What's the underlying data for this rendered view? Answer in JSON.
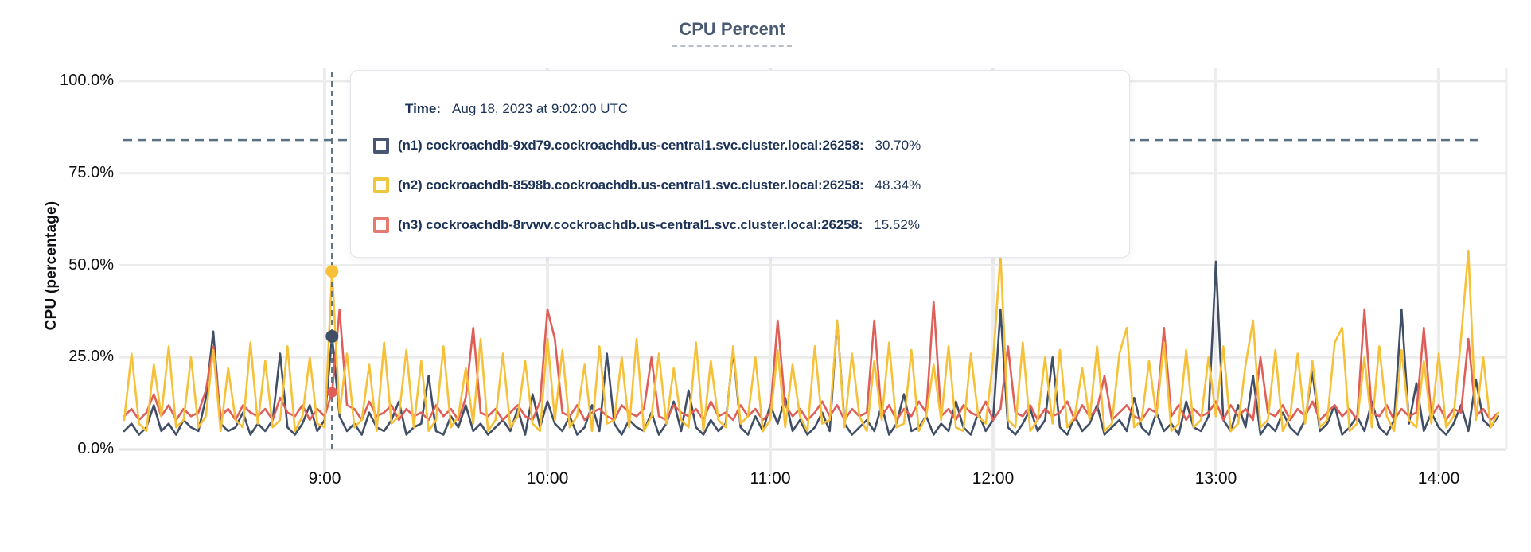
{
  "header": {
    "title": "CPU Percent"
  },
  "y_axis": {
    "label": "CPU (percentage)",
    "ticks": [
      "0.0%",
      "25.0%",
      "50.0%",
      "75.0%",
      "100.0%"
    ],
    "tick_values": [
      0,
      25,
      50,
      75,
      100
    ]
  },
  "x_axis": {
    "ticks": [
      "9:00",
      "10:00",
      "11:00",
      "12:00",
      "13:00",
      "14:00"
    ],
    "tick_minutes": [
      540,
      600,
      660,
      720,
      780,
      840
    ]
  },
  "tooltip": {
    "time_label": "Time:",
    "time_value": "Aug 18, 2023 at 9:02:00 UTC",
    "rows": [
      {
        "name": "(n1) cockroachdb-9xd79.cockroachdb.us-central1.svc.cluster.local:26258:",
        "value": "30.70%",
        "swatch_color": "#475672"
      },
      {
        "name": "(n2) cockroachdb-8598b.cockroachdb.us-central1.svc.cluster.local:26258:",
        "value": "48.34%",
        "swatch_color": "#efc73c"
      },
      {
        "name": "(n3) cockroachdb-8rvwv.cockroachdb.us-central1.svc.cluster.local:26258:",
        "value": "15.52%",
        "swatch_color": "#e57a70"
      }
    ]
  },
  "colors": {
    "grid": "#ececec",
    "axis_base": "#e2e2e2",
    "dashed_guides": "#5b7282",
    "title": "#4a5a73",
    "tooltip_text": "#1c3256"
  },
  "chart_data": {
    "type": "line",
    "title": "CPU Percent",
    "xlabel": "",
    "ylabel": "CPU (percentage)",
    "ylim": [
      0,
      100
    ],
    "grid": true,
    "x_start_minutes": 486,
    "x_step_minutes": 2,
    "threshold_percent": 84,
    "hover": {
      "minute": 542,
      "time_label": "Aug 18, 2023 at 9:02:00 UTC",
      "values": {
        "n1": 30.7,
        "n2": 48.34,
        "n3": 15.52
      }
    },
    "series": [
      {
        "name": "n1",
        "label": "(n1) cockroachdb-9xd79.cockroachdb.us-central1.svc.cluster.local:26258",
        "color": "#404e66",
        "dot_radius": 8,
        "values": [
          5,
          7,
          4,
          6,
          12,
          5,
          7,
          4,
          8,
          6,
          5,
          14,
          32,
          7,
          5,
          6,
          10,
          4,
          7,
          5,
          8,
          26,
          6,
          4,
          7,
          12,
          5,
          8,
          30.7,
          9,
          5,
          7,
          4,
          10,
          6,
          5,
          8,
          13,
          4,
          6,
          7,
          20,
          5,
          4,
          9,
          6,
          12,
          5,
          7,
          4,
          6,
          8,
          5,
          11,
          4,
          15,
          6,
          13,
          7,
          5,
          9,
          4,
          6,
          12,
          5,
          26,
          7,
          4,
          8,
          6,
          5,
          10,
          4,
          7,
          13,
          5,
          16,
          6,
          4,
          8,
          5,
          7,
          27,
          6,
          4,
          9,
          5,
          12,
          7,
          14,
          5,
          8,
          4,
          6,
          10,
          5,
          35,
          7,
          4,
          6,
          8,
          5,
          12,
          4,
          7,
          15,
          5,
          6,
          9,
          4,
          7,
          5,
          13,
          6,
          4,
          10,
          5,
          8,
          38,
          6,
          4,
          7,
          11,
          5,
          8,
          25,
          6,
          4,
          9,
          5,
          7,
          12,
          4,
          6,
          8,
          5,
          14,
          6,
          4,
          10,
          5,
          7,
          4,
          13,
          6,
          5,
          9,
          51,
          8,
          5,
          12,
          6,
          20,
          4,
          7,
          5,
          10,
          6,
          4,
          8,
          21,
          5,
          7,
          12,
          4,
          6,
          9,
          5,
          13,
          6,
          4,
          8,
          38,
          7,
          18,
          5,
          10,
          6,
          4,
          7,
          12,
          5,
          19,
          8,
          6,
          9
        ]
      },
      {
        "name": "n3",
        "label": "(n3) cockroachdb-8rvwv.cockroachdb.us-central1.svc.cluster.local:26258",
        "color": "#df5f58",
        "dot_radius": 6.5,
        "values": [
          9,
          11,
          8,
          10,
          15,
          9,
          12,
          8,
          11,
          9,
          10,
          16,
          28,
          9,
          11,
          8,
          12,
          10,
          9,
          11,
          8,
          14,
          10,
          9,
          12,
          8,
          11,
          9,
          15.52,
          38,
          12,
          11,
          8,
          13,
          9,
          10,
          12,
          8,
          11,
          9,
          10,
          8,
          12,
          9,
          11,
          8,
          14,
          33,
          10,
          9,
          11,
          8,
          10,
          12,
          9,
          8,
          13,
          38,
          30,
          10,
          9,
          12,
          8,
          10,
          11,
          9,
          8,
          12,
          10,
          9,
          11,
          25,
          9,
          8,
          12,
          10,
          9,
          11,
          8,
          13,
          9,
          10,
          8,
          12,
          9,
          11,
          8,
          10,
          35,
          12,
          9,
          11,
          8,
          10,
          13,
          9,
          12,
          8,
          11,
          9,
          10,
          35,
          9,
          12,
          8,
          11,
          9,
          13,
          10,
          40,
          9,
          11,
          8,
          12,
          10,
          9,
          13,
          8,
          11,
          28,
          10,
          9,
          12,
          8,
          11,
          9,
          10,
          13,
          8,
          12,
          9,
          11,
          20,
          8,
          10,
          12,
          9,
          8,
          11,
          10,
          33,
          9,
          12,
          8,
          11,
          9,
          10,
          13,
          8,
          12,
          9,
          11,
          8,
          25,
          10,
          9,
          12,
          8,
          11,
          9,
          13,
          8,
          10,
          12,
          9,
          11,
          8,
          38,
          10,
          9,
          12,
          8,
          11,
          9,
          10,
          33,
          9,
          12,
          8,
          11,
          10,
          30,
          9,
          11,
          8,
          10
        ]
      },
      {
        "name": "n2",
        "label": "(n2) cockroachdb-8598b.cockroachdb.us-central1.svc.cluster.local:26258",
        "color": "#f6c138",
        "dot_radius": 8,
        "values": [
          8,
          26,
          7,
          5,
          23,
          9,
          28,
          6,
          8,
          25,
          6,
          9,
          27,
          5,
          22,
          8,
          6,
          29,
          7,
          24,
          6,
          8,
          28,
          5,
          9,
          25,
          7,
          6,
          48.34,
          10,
          26,
          6,
          8,
          23,
          5,
          29,
          7,
          9,
          27,
          6,
          24,
          5,
          8,
          28,
          6,
          9,
          22,
          7,
          30,
          5,
          8,
          26,
          6,
          9,
          24,
          7,
          5,
          30,
          8,
          27,
          6,
          9,
          23,
          5,
          28,
          7,
          8,
          25,
          6,
          30,
          5,
          9,
          26,
          7,
          22,
          8,
          6,
          29,
          5,
          24,
          8,
          6,
          28,
          7,
          9,
          25,
          5,
          8,
          27,
          6,
          23,
          9,
          5,
          28,
          7,
          8,
          35,
          6,
          26,
          9,
          5,
          24,
          8,
          29,
          6,
          7,
          27,
          5,
          9,
          23,
          8,
          28,
          6,
          5,
          26,
          9,
          7,
          24,
          53,
          8,
          6,
          29,
          5,
          8,
          25,
          7,
          27,
          6,
          9,
          22,
          8,
          28,
          5,
          7,
          26,
          33,
          6,
          8,
          24,
          9,
          29,
          5,
          7,
          27,
          6,
          8,
          25,
          9,
          28,
          5,
          7,
          23,
          35,
          6,
          8,
          27,
          5,
          9,
          26,
          7,
          24,
          6,
          8,
          29,
          33,
          5,
          7,
          25,
          6,
          28,
          9,
          5,
          27,
          8,
          6,
          24,
          7,
          26,
          6,
          9,
          30,
          54,
          8,
          25,
          6,
          10
        ]
      }
    ]
  }
}
